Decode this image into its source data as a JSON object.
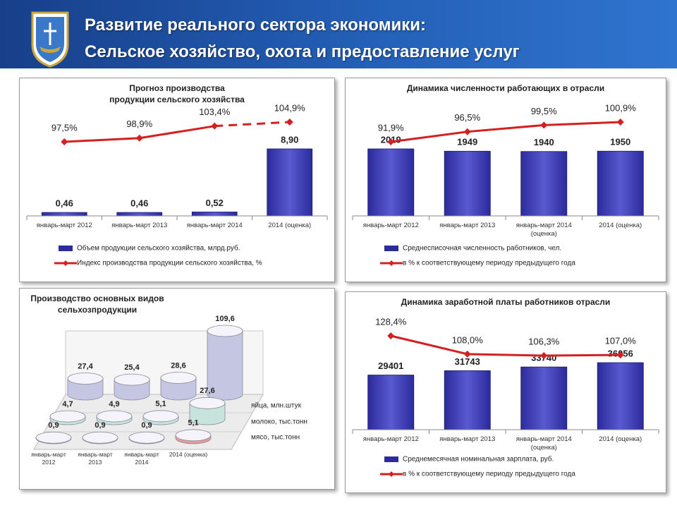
{
  "header": {
    "title": [
      "Развитие реального сектора экономики:",
      "Сельское хозяйство, охота и предоставление услуг"
    ]
  },
  "chart_data": [
    {
      "type": "combo",
      "title": [
        "Прогноз производства",
        "продукции сельского хозяйства"
      ],
      "categories": [
        "январь-март 2012",
        "январь-март 2013",
        "январь-март 2014",
        "2014 (оценка)"
      ],
      "series": [
        {
          "name": "Объем продукции сельского хозяйства, млрд.руб.",
          "type": "bar",
          "color": "#2b2b9c",
          "values": [
            0.46,
            0.46,
            0.52,
            8.9
          ],
          "value_labels": [
            "0,46",
            "0,46",
            "0,52",
            "8,90"
          ]
        },
        {
          "name": "Индекс производства продукции сельского хозяйства, %",
          "type": "line",
          "color": "#d42020",
          "values": [
            97.5,
            98.9,
            103.4,
            104.9
          ],
          "value_labels": [
            "97,5%",
            "98,9%",
            "103,4%",
            "104,9%"
          ],
          "dashed_last_segment": true
        }
      ]
    },
    {
      "type": "combo",
      "title": "Динамика численности работающих в отрасли",
      "categories": [
        "январь-март 2012",
        "январь-март 2013",
        "январь-март 2014 (оценка)",
        "2014 (оценка)"
      ],
      "series": [
        {
          "name": "Среднесписочная численность работников, чел.",
          "type": "bar",
          "color": "#2b2b9c",
          "values": [
            2019,
            1949,
            1940,
            1950
          ]
        },
        {
          "name": "в % к соответствующему периоду предыдущего года",
          "type": "line",
          "color": "#d42020",
          "values": [
            91.9,
            96.5,
            99.5,
            100.9
          ],
          "value_labels": [
            "91,9%",
            "96,5%",
            "99,5%",
            "100,9%"
          ]
        }
      ]
    },
    {
      "type": "cylinder",
      "title": [
        "Производство основных видов",
        "сельхозпродукции"
      ],
      "categories": [
        "январь-март 2012",
        "январь-март 2013",
        "январь-март 2014",
        "2014 (оценка)"
      ],
      "series": [
        {
          "name": "яйца, млн.штук",
          "color": "#c4c6e2",
          "values": [
            27.4,
            25.4,
            28.6,
            109.6
          ],
          "value_labels": [
            "27,4",
            "25,4",
            "28,6",
            "109,6"
          ]
        },
        {
          "name": "молоко, тыс.тонн",
          "color": "#c8e2dc",
          "values": [
            4.7,
            4.9,
            5.1,
            27.6
          ],
          "value_labels": [
            "4,7",
            "4,9",
            "5,1",
            "27,6"
          ]
        },
        {
          "name": "мясо, тыс.тонн",
          "color": "#e79a9a",
          "values": [
            0.9,
            0.9,
            0.9,
            5.1
          ],
          "value_labels": [
            "0,9",
            "0,9",
            "0,9",
            "5,1"
          ]
        }
      ]
    },
    {
      "type": "combo",
      "title": "Динамика заработной платы работников отрасли",
      "categories": [
        "январь-март 2012",
        "январь-март 2013",
        "январь-март 2014 (оценка)",
        "2014 (оценка)"
      ],
      "series": [
        {
          "name": "Среднемесячная номинальная зарплата, руб.",
          "type": "bar",
          "color": "#2b2b9c",
          "values": [
            29401,
            31743,
            33740,
            36056
          ]
        },
        {
          "name": "в % к соответствующему периоду предыдущего года",
          "type": "line",
          "color": "#d42020",
          "values": [
            128.4,
            108.0,
            106.3,
            107.0
          ],
          "value_labels": [
            "128,4%",
            "108,0%",
            "106,3%",
            "107,0%"
          ]
        }
      ]
    }
  ]
}
